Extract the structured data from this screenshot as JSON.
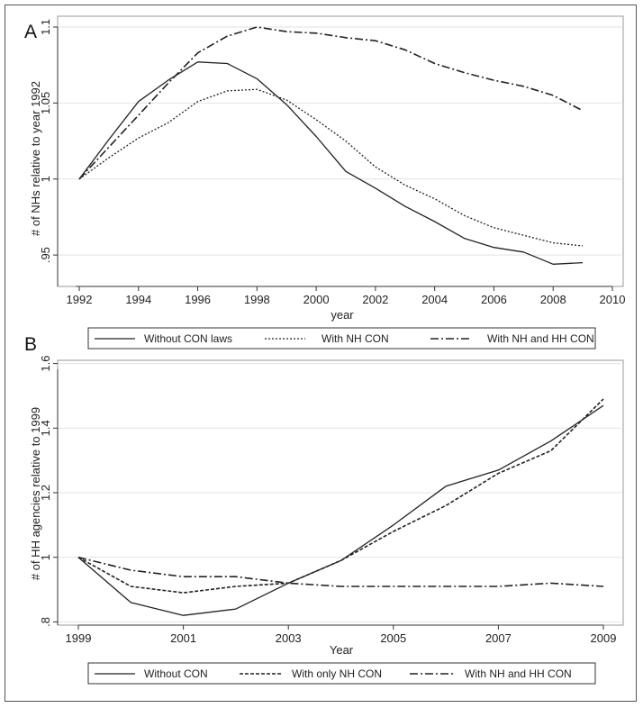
{
  "chart_data": [
    {
      "type": "line",
      "panel_label": "A",
      "xlabel": "year",
      "ylabel": "# of NHs relative to year 1992",
      "xlim": [
        1992,
        2010
      ],
      "ylim": [
        0.94,
        1.1
      ],
      "x_ticks": [
        "1992",
        "1994",
        "1996",
        "1998",
        "2000",
        "2002",
        "2004",
        "2006",
        "2008",
        "2010"
      ],
      "y_ticks": [
        ".95",
        "1",
        "1.05",
        "1.1"
      ],
      "y_tick_values": [
        0.95,
        1.0,
        1.05,
        1.1
      ],
      "x": [
        1992,
        1993,
        1994,
        1995,
        1996,
        1997,
        1998,
        1999,
        2000,
        2001,
        2002,
        2003,
        2004,
        2005,
        2006,
        2007,
        2008,
        2009
      ],
      "series": [
        {
          "name": "Without CON laws",
          "style": "solid",
          "values": [
            1.0,
            1.026,
            1.051,
            1.065,
            1.077,
            1.076,
            1.066,
            1.049,
            1.028,
            1.005,
            0.994,
            0.982,
            0.972,
            0.961,
            0.955,
            0.952,
            0.944,
            0.945
          ]
        },
        {
          "name": "With NH CON",
          "style": "dotted",
          "values": [
            1.0,
            1.014,
            1.027,
            1.037,
            1.051,
            1.058,
            1.059,
            1.052,
            1.039,
            1.025,
            1.008,
            0.996,
            0.987,
            0.976,
            0.968,
            0.963,
            0.958,
            0.956
          ]
        },
        {
          "name": "With NH and HH CON",
          "style": "dashdot",
          "values": [
            1.0,
            1.021,
            1.042,
            1.063,
            1.083,
            1.094,
            1.1,
            1.097,
            1.096,
            1.093,
            1.091,
            1.085,
            1.076,
            1.07,
            1.065,
            1.061,
            1.055,
            1.045
          ]
        }
      ]
    },
    {
      "type": "line",
      "panel_label": "B",
      "xlabel": "Year",
      "ylabel": "# of HH agencies relative to 1999",
      "xlim": [
        1999,
        2009
      ],
      "ylim": [
        0.79,
        1.61
      ],
      "x_ticks": [
        "1999",
        "2001",
        "2003",
        "2005",
        "2007",
        "2009"
      ],
      "y_ticks": [
        ".8",
        "1",
        "1.2",
        "1.4",
        "1.6"
      ],
      "y_tick_values": [
        0.8,
        1.0,
        1.2,
        1.4,
        1.6
      ],
      "x": [
        1999,
        2000,
        2001,
        2002,
        2003,
        2004,
        2005,
        2006,
        2007,
        2008,
        2009
      ],
      "series": [
        {
          "name": "Without CON",
          "style": "solid",
          "values": [
            1.0,
            0.86,
            0.82,
            0.84,
            0.92,
            0.99,
            1.1,
            1.22,
            1.27,
            1.36,
            1.47
          ]
        },
        {
          "name": "With only NH CON",
          "style": "dashed",
          "values": [
            1.0,
            0.91,
            0.89,
            0.91,
            0.92,
            0.99,
            1.08,
            1.16,
            1.26,
            1.33,
            1.49
          ]
        },
        {
          "name": "With NH and HH CON",
          "style": "dashdot",
          "values": [
            1.0,
            0.96,
            0.94,
            0.94,
            0.92,
            0.91,
            0.91,
            0.91,
            0.91,
            0.92,
            0.91
          ]
        }
      ]
    }
  ]
}
